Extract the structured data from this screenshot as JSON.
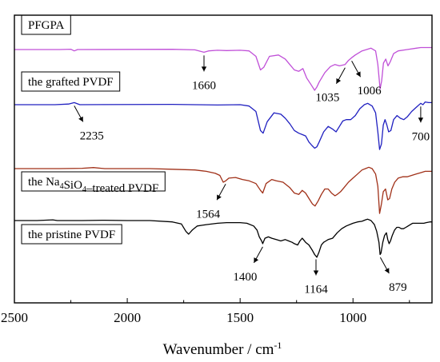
{
  "chart_data": {
    "type": "line",
    "title": "",
    "xlabel": "Wavenumber / cm",
    "xlabel_sup": "-1",
    "ylabel": "",
    "x_reversed": true,
    "xlim": [
      2500,
      650
    ],
    "xticks": [
      "2500",
      "2000",
      "1500",
      "1000"
    ],
    "grid": false,
    "series": [
      {
        "name": "PFGPA",
        "name_parts": [
          {
            "t": "PFGPA"
          }
        ],
        "color": "#c050d8",
        "points": [
          [
            2500,
            0
          ],
          [
            2300,
            0
          ],
          [
            2250,
            -0.5
          ],
          [
            2235,
            2
          ],
          [
            2220,
            0
          ],
          [
            1800,
            -0.3
          ],
          [
            1700,
            0.5
          ],
          [
            1660,
            4
          ],
          [
            1640,
            2
          ],
          [
            1600,
            1
          ],
          [
            1560,
            1.5
          ],
          [
            1500,
            1
          ],
          [
            1460,
            2
          ],
          [
            1430,
            10
          ],
          [
            1410,
            30
          ],
          [
            1395,
            26
          ],
          [
            1370,
            10
          ],
          [
            1330,
            8
          ],
          [
            1300,
            14
          ],
          [
            1280,
            22
          ],
          [
            1260,
            30
          ],
          [
            1240,
            32
          ],
          [
            1222,
            28
          ],
          [
            1205,
            42
          ],
          [
            1185,
            52
          ],
          [
            1170,
            60
          ],
          [
            1160,
            55
          ],
          [
            1150,
            48
          ],
          [
            1125,
            34
          ],
          [
            1100,
            25
          ],
          [
            1080,
            22
          ],
          [
            1060,
            24
          ],
          [
            1035,
            22
          ],
          [
            1020,
            16
          ],
          [
            1006,
            12
          ],
          [
            990,
            8
          ],
          [
            960,
            2
          ],
          [
            940,
            0
          ],
          [
            920,
            -2
          ],
          [
            900,
            2
          ],
          [
            890,
            22
          ],
          [
            880,
            58
          ],
          [
            873,
            46
          ],
          [
            865,
            20
          ],
          [
            855,
            14
          ],
          [
            845,
            24
          ],
          [
            835,
            18
          ],
          [
            820,
            6
          ],
          [
            800,
            2
          ],
          [
            760,
            0
          ],
          [
            720,
            -2
          ],
          [
            700,
            -3
          ],
          [
            680,
            -3
          ],
          [
            650,
            -3
          ]
        ],
        "offset": 62
      },
      {
        "name": "the grafted PVDF",
        "name_parts": [
          {
            "t": "the grafted PVDF"
          }
        ],
        "color": "#2020c0",
        "points": [
          [
            2500,
            0
          ],
          [
            2320,
            0
          ],
          [
            2260,
            -1
          ],
          [
            2235,
            -3
          ],
          [
            2210,
            0
          ],
          [
            1800,
            -0.5
          ],
          [
            1700,
            0
          ],
          [
            1600,
            0.5
          ],
          [
            1500,
            0
          ],
          [
            1460,
            2
          ],
          [
            1430,
            10
          ],
          [
            1410,
            38
          ],
          [
            1398,
            42
          ],
          [
            1380,
            25
          ],
          [
            1350,
            12
          ],
          [
            1320,
            14
          ],
          [
            1300,
            20
          ],
          [
            1280,
            28
          ],
          [
            1260,
            38
          ],
          [
            1240,
            42
          ],
          [
            1225,
            44
          ],
          [
            1210,
            46
          ],
          [
            1195,
            55
          ],
          [
            1182,
            60
          ],
          [
            1170,
            64
          ],
          [
            1160,
            62
          ],
          [
            1150,
            55
          ],
          [
            1130,
            40
          ],
          [
            1110,
            32
          ],
          [
            1090,
            36
          ],
          [
            1075,
            40
          ],
          [
            1060,
            32
          ],
          [
            1045,
            24
          ],
          [
            1030,
            22
          ],
          [
            1010,
            22
          ],
          [
            990,
            16
          ],
          [
            970,
            6
          ],
          [
            950,
            0
          ],
          [
            935,
            -2
          ],
          [
            915,
            2
          ],
          [
            900,
            12
          ],
          [
            890,
            40
          ],
          [
            882,
            66
          ],
          [
            874,
            58
          ],
          [
            866,
            30
          ],
          [
            858,
            22
          ],
          [
            850,
            30
          ],
          [
            842,
            40
          ],
          [
            832,
            38
          ],
          [
            820,
            22
          ],
          [
            805,
            16
          ],
          [
            790,
            20
          ],
          [
            775,
            22
          ],
          [
            760,
            18
          ],
          [
            740,
            10
          ],
          [
            720,
            4
          ],
          [
            700,
            -2
          ],
          [
            690,
            0
          ],
          [
            680,
            -4
          ],
          [
            665,
            -3
          ],
          [
            650,
            -3
          ]
        ],
        "offset": 131
      },
      {
        "name": "the Na4SiO4-treated PVDF",
        "name_parts": [
          {
            "t": "the Na"
          },
          {
            "t": "4",
            "sub": true
          },
          {
            "t": "SiO"
          },
          {
            "t": "4",
            "sub": true
          },
          {
            "t": "–treated PVDF"
          }
        ],
        "color": "#a03018",
        "points": [
          [
            2500,
            0
          ],
          [
            2300,
            0
          ],
          [
            2200,
            -0.5
          ],
          [
            2150,
            -1.5
          ],
          [
            2100,
            0
          ],
          [
            1900,
            0
          ],
          [
            1800,
            1
          ],
          [
            1700,
            2
          ],
          [
            1650,
            4
          ],
          [
            1610,
            7
          ],
          [
            1590,
            10
          ],
          [
            1575,
            20
          ],
          [
            1564,
            18
          ],
          [
            1550,
            14
          ],
          [
            1520,
            13
          ],
          [
            1490,
            16
          ],
          [
            1460,
            18
          ],
          [
            1430,
            22
          ],
          [
            1410,
            32
          ],
          [
            1400,
            36
          ],
          [
            1385,
            22
          ],
          [
            1360,
            16
          ],
          [
            1340,
            18
          ],
          [
            1310,
            20
          ],
          [
            1280,
            28
          ],
          [
            1260,
            36
          ],
          [
            1240,
            38
          ],
          [
            1225,
            32
          ],
          [
            1210,
            36
          ],
          [
            1195,
            44
          ],
          [
            1180,
            52
          ],
          [
            1168,
            55
          ],
          [
            1155,
            48
          ],
          [
            1140,
            38
          ],
          [
            1125,
            30
          ],
          [
            1110,
            30
          ],
          [
            1095,
            36
          ],
          [
            1080,
            40
          ],
          [
            1070,
            38
          ],
          [
            1055,
            34
          ],
          [
            1040,
            28
          ],
          [
            1020,
            20
          ],
          [
            1000,
            14
          ],
          [
            980,
            8
          ],
          [
            960,
            2
          ],
          [
            945,
            0
          ],
          [
            930,
            -2
          ],
          [
            915,
            0
          ],
          [
            900,
            8
          ],
          [
            890,
            26
          ],
          [
            882,
            66
          ],
          [
            874,
            52
          ],
          [
            866,
            34
          ],
          [
            856,
            30
          ],
          [
            846,
            46
          ],
          [
            838,
            44
          ],
          [
            828,
            30
          ],
          [
            815,
            20
          ],
          [
            800,
            14
          ],
          [
            780,
            12
          ],
          [
            760,
            12
          ],
          [
            740,
            10
          ],
          [
            720,
            8
          ],
          [
            700,
            6
          ],
          [
            680,
            4
          ],
          [
            660,
            4
          ],
          [
            650,
            4
          ]
        ],
        "offset": 211
      },
      {
        "name": "the pristine PVDF",
        "name_parts": [
          {
            "t": "the pristine PVDF"
          }
        ],
        "color": "#000000",
        "points": [
          [
            2500,
            0
          ],
          [
            2400,
            0
          ],
          [
            2330,
            -1
          ],
          [
            2310,
            0
          ],
          [
            2200,
            0
          ],
          [
            2100,
            -0.5
          ],
          [
            2000,
            0
          ],
          [
            1900,
            0
          ],
          [
            1800,
            2
          ],
          [
            1760,
            5
          ],
          [
            1740,
            16
          ],
          [
            1728,
            20
          ],
          [
            1712,
            14
          ],
          [
            1690,
            8
          ],
          [
            1650,
            6
          ],
          [
            1600,
            4
          ],
          [
            1560,
            3
          ],
          [
            1500,
            3
          ],
          [
            1470,
            4
          ],
          [
            1440,
            8
          ],
          [
            1425,
            14
          ],
          [
            1415,
            24
          ],
          [
            1405,
            30
          ],
          [
            1400,
            34
          ],
          [
            1390,
            26
          ],
          [
            1375,
            24
          ],
          [
            1360,
            26
          ],
          [
            1340,
            28
          ],
          [
            1320,
            30
          ],
          [
            1300,
            28
          ],
          [
            1285,
            30
          ],
          [
            1270,
            32
          ],
          [
            1260,
            34
          ],
          [
            1245,
            36
          ],
          [
            1235,
            30
          ],
          [
            1225,
            26
          ],
          [
            1210,
            32
          ],
          [
            1195,
            36
          ],
          [
            1180,
            44
          ],
          [
            1170,
            50
          ],
          [
            1160,
            54
          ],
          [
            1150,
            46
          ],
          [
            1140,
            36
          ],
          [
            1130,
            32
          ],
          [
            1120,
            30
          ],
          [
            1110,
            28
          ],
          [
            1090,
            26
          ],
          [
            1070,
            18
          ],
          [
            1050,
            12
          ],
          [
            1030,
            8
          ],
          [
            1000,
            4
          ],
          [
            980,
            2
          ],
          [
            960,
            1
          ],
          [
            945,
            -1
          ],
          [
            935,
            -2
          ],
          [
            920,
            0
          ],
          [
            905,
            6
          ],
          [
            895,
            16
          ],
          [
            885,
            32
          ],
          [
            880,
            50
          ],
          [
            876,
            48
          ],
          [
            868,
            32
          ],
          [
            860,
            22
          ],
          [
            852,
            18
          ],
          [
            846,
            28
          ],
          [
            840,
            34
          ],
          [
            834,
            30
          ],
          [
            826,
            22
          ],
          [
            816,
            14
          ],
          [
            806,
            10
          ],
          [
            796,
            10
          ],
          [
            786,
            12
          ],
          [
            776,
            12
          ],
          [
            766,
            10
          ],
          [
            756,
            8
          ],
          [
            746,
            6
          ],
          [
            736,
            4
          ],
          [
            726,
            4
          ],
          [
            716,
            4
          ],
          [
            706,
            4
          ],
          [
            696,
            4
          ],
          [
            686,
            4
          ],
          [
            676,
            3
          ],
          [
            660,
            2
          ],
          [
            650,
            2
          ]
        ],
        "offset": 276
      }
    ],
    "annotations": [
      {
        "text": "1660",
        "x": 1660,
        "series": 0,
        "placement": "below"
      },
      {
        "text": "1035",
        "x": 1035,
        "series": 0,
        "placement": "below-left"
      },
      {
        "text": "1006",
        "x": 1006,
        "series": 0,
        "placement": "below-right"
      },
      {
        "text": "2235",
        "x": 2235,
        "series": 1,
        "placement": "below-right"
      },
      {
        "text": "700",
        "x": 700,
        "series": 1,
        "placement": "below"
      },
      {
        "text": "1564",
        "x": 1564,
        "series": 2,
        "placement": "below-left"
      },
      {
        "text": "1400",
        "x": 1400,
        "series": 3,
        "placement": "below-left"
      },
      {
        "text": "1164",
        "x": 1164,
        "series": 3,
        "placement": "below"
      },
      {
        "text": "879",
        "x": 879,
        "series": 3,
        "placement": "below-right"
      }
    ]
  }
}
